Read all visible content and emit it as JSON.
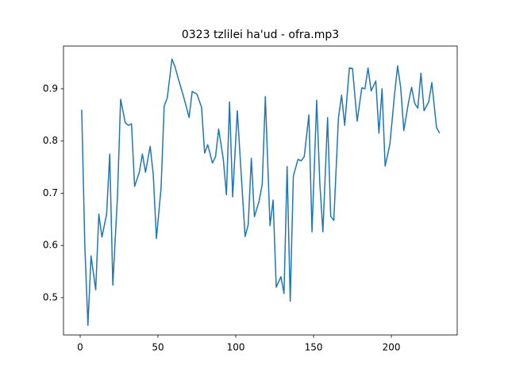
{
  "chart_data": {
    "type": "line",
    "title": "0323 tzlilei ha'ud - ofra.mp3",
    "x": [
      1,
      3,
      5,
      7,
      10,
      12,
      14,
      17,
      19,
      21,
      24,
      26,
      29,
      31,
      33,
      35,
      38,
      40,
      42,
      45,
      47,
      49,
      52,
      54,
      56,
      59,
      61,
      63,
      66,
      68,
      70,
      72,
      75,
      78,
      80,
      82,
      85,
      87,
      89,
      92,
      94,
      96,
      98,
      101,
      103,
      106,
      108,
      110,
      112,
      115,
      117,
      119,
      122,
      124,
      126,
      129,
      131,
      133,
      135,
      137,
      140,
      142,
      144,
      147,
      149,
      152,
      154,
      156,
      159,
      161,
      163,
      166,
      168,
      170,
      173,
      175,
      178,
      181,
      183,
      185,
      187,
      190,
      192,
      194,
      196,
      199,
      202,
      204,
      206,
      208,
      211,
      213,
      215,
      217,
      219,
      221,
      224,
      226,
      229,
      231
    ],
    "series": [
      {
        "color": "#1f77b4",
        "values": [
          0.86,
          0.6,
          0.447,
          0.58,
          0.515,
          0.66,
          0.616,
          0.66,
          0.775,
          0.524,
          0.695,
          0.88,
          0.835,
          0.83,
          0.833,
          0.713,
          0.74,
          0.775,
          0.74,
          0.79,
          0.735,
          0.613,
          0.71,
          0.867,
          0.883,
          0.957,
          0.942,
          0.92,
          0.89,
          0.868,
          0.845,
          0.895,
          0.89,
          0.865,
          0.777,
          0.793,
          0.758,
          0.77,
          0.823,
          0.765,
          0.697,
          0.875,
          0.693,
          0.858,
          0.76,
          0.617,
          0.64,
          0.767,
          0.655,
          0.685,
          0.717,
          0.885,
          0.638,
          0.687,
          0.52,
          0.54,
          0.508,
          0.751,
          0.493,
          0.733,
          0.765,
          0.762,
          0.77,
          0.85,
          0.626,
          0.878,
          0.72,
          0.626,
          0.845,
          0.656,
          0.648,
          0.845,
          0.888,
          0.83,
          0.94,
          0.939,
          0.838,
          0.902,
          0.9,
          0.94,
          0.896,
          0.915,
          0.815,
          0.9,
          0.752,
          0.793,
          0.888,
          0.944,
          0.902,
          0.82,
          0.874,
          0.903,
          0.872,
          0.863,
          0.93,
          0.858,
          0.875,
          0.912,
          0.826,
          0.815
        ]
      }
    ],
    "xlim": [
      -10.7,
      242.3
    ],
    "ylim": [
      0.4285,
      0.982
    ],
    "xticks": [
      0,
      50,
      100,
      150,
      200
    ],
    "yticks": [
      0.5,
      0.6,
      0.7,
      0.8,
      0.9
    ]
  }
}
